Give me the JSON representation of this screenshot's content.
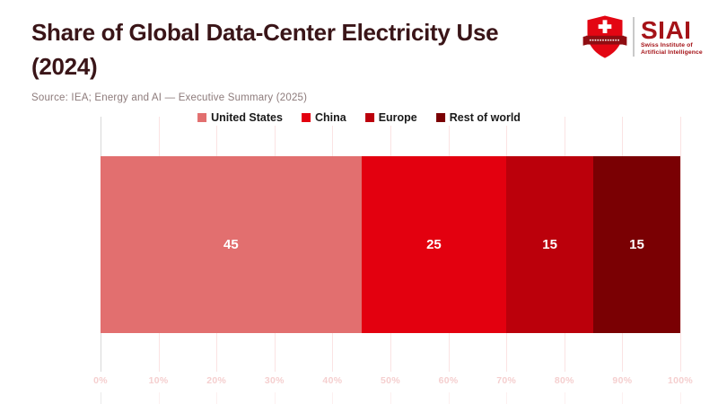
{
  "header": {
    "title_line1": "Share of Global Data-Center Electricity Use",
    "title_line2": "(2024)",
    "source": "Source: IEA; Energy and AI — Executive Summary (2025)"
  },
  "logo": {
    "acronym": "SIAI",
    "org_line1": "Swiss Institute of",
    "org_line2": "Artificial Intelligence",
    "icon": "swiss-shield-icon",
    "shield_color": "#e30613",
    "banner_color": "#8f0d12",
    "text_color": "#a51318"
  },
  "chart_data": {
    "type": "bar",
    "variant": "horizontal-stacked",
    "title": "Share of Global Data-Center Electricity Use (2024)",
    "unit": "percent share",
    "series": [
      {
        "name": "United States",
        "value": 45,
        "color": "#e26f6f"
      },
      {
        "name": "China",
        "value": 25,
        "color": "#e3000f"
      },
      {
        "name": "Europe",
        "value": 15,
        "color": "#bb000b"
      },
      {
        "name": "Rest of world",
        "value": 15,
        "color": "#7a0003"
      }
    ],
    "bar_labels": [
      "45",
      "25",
      "15",
      "15"
    ],
    "xlim": [
      0,
      100
    ],
    "x_ticks": [
      "0%",
      "10%",
      "20%",
      "30%",
      "40%",
      "50%",
      "60%",
      "70%",
      "80%",
      "90%",
      "100%"
    ],
    "legend_position": "top-center",
    "grid": true,
    "colors": {
      "gridline": "#fbe3e3",
      "axis_line": "#d9d9d9",
      "tick_label": "#f5cfcf",
      "bar_label": "#ffffff"
    }
  }
}
